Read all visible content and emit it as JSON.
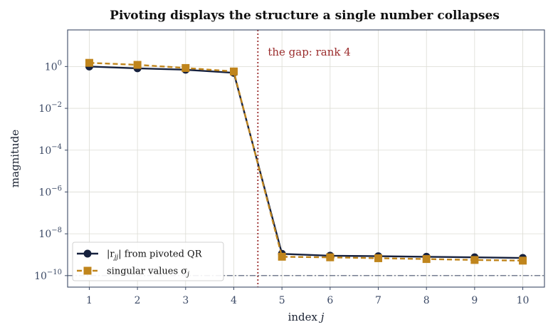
{
  "chart_data": {
    "type": "line",
    "title": "Pivoting displays the structure a single number collapses",
    "xlabel": "index j",
    "ylabel": "magnitude",
    "x": [
      1,
      2,
      3,
      4,
      5,
      6,
      7,
      8,
      9,
      10
    ],
    "xlim": [
      0.55,
      10.45
    ],
    "y_scale": "log",
    "ylim_log10": [
      -10.55,
      1.75
    ],
    "y_ticks": [
      {
        "exp": 0,
        "base": "10",
        "sup": "0"
      },
      {
        "exp": -2,
        "base": "10",
        "sup": "−2"
      },
      {
        "exp": -4,
        "base": "10",
        "sup": "−4"
      },
      {
        "exp": -6,
        "base": "10",
        "sup": "−6"
      },
      {
        "exp": -8,
        "base": "10",
        "sup": "−8"
      },
      {
        "exp": -10,
        "base": "10",
        "sup": "−10"
      }
    ],
    "grid": true,
    "legend_position": "bottom-left",
    "series": [
      {
        "name_main": "|r",
        "name_sub": "jj",
        "name_rest": "| from pivoted QR",
        "marker": "circle",
        "style": "solid",
        "color": "#16213e",
        "values": [
          1.0,
          0.82,
          0.7,
          0.5,
          1.1e-09,
          9e-10,
          8.5e-10,
          8e-10,
          7.5e-10,
          7e-10
        ]
      },
      {
        "name_main": "singular values σ",
        "name_sub": "j",
        "name_rest": "",
        "marker": "square",
        "style": "dashed",
        "color": "#c0851c",
        "values": [
          1.5,
          1.2,
          0.85,
          0.58,
          8e-10,
          7.5e-10,
          6.8e-10,
          6.2e-10,
          5.6e-10,
          5.2e-10
        ]
      }
    ],
    "vline": {
      "x": 4.5,
      "color": "#9b2d2d",
      "label": "the gap: rank 4"
    },
    "hline": {
      "y": 1e-10,
      "color": "#4a5570"
    }
  }
}
